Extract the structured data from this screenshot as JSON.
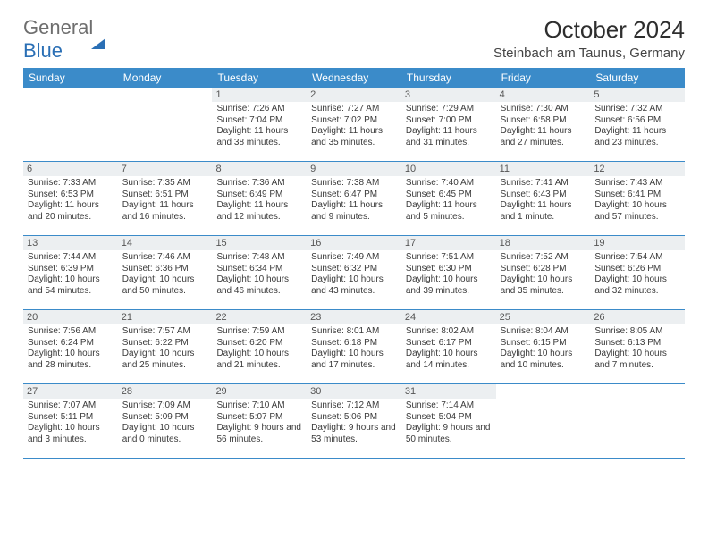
{
  "brand": {
    "part1": "General",
    "part2": "Blue"
  },
  "title": "October 2024",
  "location": "Steinbach am Taunus, Germany",
  "colors": {
    "header_bg": "#3b8bc9",
    "header_text": "#ffffff",
    "daynum_bg": "#eceff1",
    "border": "#3b8bc9",
    "logo_gray": "#6e6e6e",
    "logo_blue": "#2a6fb5"
  },
  "weekdays": [
    "Sunday",
    "Monday",
    "Tuesday",
    "Wednesday",
    "Thursday",
    "Friday",
    "Saturday"
  ],
  "weeks": [
    [
      {
        "num": "",
        "sunrise": "",
        "sunset": "",
        "daylight": ""
      },
      {
        "num": "",
        "sunrise": "",
        "sunset": "",
        "daylight": ""
      },
      {
        "num": "1",
        "sunrise": "Sunrise: 7:26 AM",
        "sunset": "Sunset: 7:04 PM",
        "daylight": "Daylight: 11 hours and 38 minutes."
      },
      {
        "num": "2",
        "sunrise": "Sunrise: 7:27 AM",
        "sunset": "Sunset: 7:02 PM",
        "daylight": "Daylight: 11 hours and 35 minutes."
      },
      {
        "num": "3",
        "sunrise": "Sunrise: 7:29 AM",
        "sunset": "Sunset: 7:00 PM",
        "daylight": "Daylight: 11 hours and 31 minutes."
      },
      {
        "num": "4",
        "sunrise": "Sunrise: 7:30 AM",
        "sunset": "Sunset: 6:58 PM",
        "daylight": "Daylight: 11 hours and 27 minutes."
      },
      {
        "num": "5",
        "sunrise": "Sunrise: 7:32 AM",
        "sunset": "Sunset: 6:56 PM",
        "daylight": "Daylight: 11 hours and 23 minutes."
      }
    ],
    [
      {
        "num": "6",
        "sunrise": "Sunrise: 7:33 AM",
        "sunset": "Sunset: 6:53 PM",
        "daylight": "Daylight: 11 hours and 20 minutes."
      },
      {
        "num": "7",
        "sunrise": "Sunrise: 7:35 AM",
        "sunset": "Sunset: 6:51 PM",
        "daylight": "Daylight: 11 hours and 16 minutes."
      },
      {
        "num": "8",
        "sunrise": "Sunrise: 7:36 AM",
        "sunset": "Sunset: 6:49 PM",
        "daylight": "Daylight: 11 hours and 12 minutes."
      },
      {
        "num": "9",
        "sunrise": "Sunrise: 7:38 AM",
        "sunset": "Sunset: 6:47 PM",
        "daylight": "Daylight: 11 hours and 9 minutes."
      },
      {
        "num": "10",
        "sunrise": "Sunrise: 7:40 AM",
        "sunset": "Sunset: 6:45 PM",
        "daylight": "Daylight: 11 hours and 5 minutes."
      },
      {
        "num": "11",
        "sunrise": "Sunrise: 7:41 AM",
        "sunset": "Sunset: 6:43 PM",
        "daylight": "Daylight: 11 hours and 1 minute."
      },
      {
        "num": "12",
        "sunrise": "Sunrise: 7:43 AM",
        "sunset": "Sunset: 6:41 PM",
        "daylight": "Daylight: 10 hours and 57 minutes."
      }
    ],
    [
      {
        "num": "13",
        "sunrise": "Sunrise: 7:44 AM",
        "sunset": "Sunset: 6:39 PM",
        "daylight": "Daylight: 10 hours and 54 minutes."
      },
      {
        "num": "14",
        "sunrise": "Sunrise: 7:46 AM",
        "sunset": "Sunset: 6:36 PM",
        "daylight": "Daylight: 10 hours and 50 minutes."
      },
      {
        "num": "15",
        "sunrise": "Sunrise: 7:48 AM",
        "sunset": "Sunset: 6:34 PM",
        "daylight": "Daylight: 10 hours and 46 minutes."
      },
      {
        "num": "16",
        "sunrise": "Sunrise: 7:49 AM",
        "sunset": "Sunset: 6:32 PM",
        "daylight": "Daylight: 10 hours and 43 minutes."
      },
      {
        "num": "17",
        "sunrise": "Sunrise: 7:51 AM",
        "sunset": "Sunset: 6:30 PM",
        "daylight": "Daylight: 10 hours and 39 minutes."
      },
      {
        "num": "18",
        "sunrise": "Sunrise: 7:52 AM",
        "sunset": "Sunset: 6:28 PM",
        "daylight": "Daylight: 10 hours and 35 minutes."
      },
      {
        "num": "19",
        "sunrise": "Sunrise: 7:54 AM",
        "sunset": "Sunset: 6:26 PM",
        "daylight": "Daylight: 10 hours and 32 minutes."
      }
    ],
    [
      {
        "num": "20",
        "sunrise": "Sunrise: 7:56 AM",
        "sunset": "Sunset: 6:24 PM",
        "daylight": "Daylight: 10 hours and 28 minutes."
      },
      {
        "num": "21",
        "sunrise": "Sunrise: 7:57 AM",
        "sunset": "Sunset: 6:22 PM",
        "daylight": "Daylight: 10 hours and 25 minutes."
      },
      {
        "num": "22",
        "sunrise": "Sunrise: 7:59 AM",
        "sunset": "Sunset: 6:20 PM",
        "daylight": "Daylight: 10 hours and 21 minutes."
      },
      {
        "num": "23",
        "sunrise": "Sunrise: 8:01 AM",
        "sunset": "Sunset: 6:18 PM",
        "daylight": "Daylight: 10 hours and 17 minutes."
      },
      {
        "num": "24",
        "sunrise": "Sunrise: 8:02 AM",
        "sunset": "Sunset: 6:17 PM",
        "daylight": "Daylight: 10 hours and 14 minutes."
      },
      {
        "num": "25",
        "sunrise": "Sunrise: 8:04 AM",
        "sunset": "Sunset: 6:15 PM",
        "daylight": "Daylight: 10 hours and 10 minutes."
      },
      {
        "num": "26",
        "sunrise": "Sunrise: 8:05 AM",
        "sunset": "Sunset: 6:13 PM",
        "daylight": "Daylight: 10 hours and 7 minutes."
      }
    ],
    [
      {
        "num": "27",
        "sunrise": "Sunrise: 7:07 AM",
        "sunset": "Sunset: 5:11 PM",
        "daylight": "Daylight: 10 hours and 3 minutes."
      },
      {
        "num": "28",
        "sunrise": "Sunrise: 7:09 AM",
        "sunset": "Sunset: 5:09 PM",
        "daylight": "Daylight: 10 hours and 0 minutes."
      },
      {
        "num": "29",
        "sunrise": "Sunrise: 7:10 AM",
        "sunset": "Sunset: 5:07 PM",
        "daylight": "Daylight: 9 hours and 56 minutes."
      },
      {
        "num": "30",
        "sunrise": "Sunrise: 7:12 AM",
        "sunset": "Sunset: 5:06 PM",
        "daylight": "Daylight: 9 hours and 53 minutes."
      },
      {
        "num": "31",
        "sunrise": "Sunrise: 7:14 AM",
        "sunset": "Sunset: 5:04 PM",
        "daylight": "Daylight: 9 hours and 50 minutes."
      },
      {
        "num": "",
        "sunrise": "",
        "sunset": "",
        "daylight": ""
      },
      {
        "num": "",
        "sunrise": "",
        "sunset": "",
        "daylight": ""
      }
    ]
  ]
}
